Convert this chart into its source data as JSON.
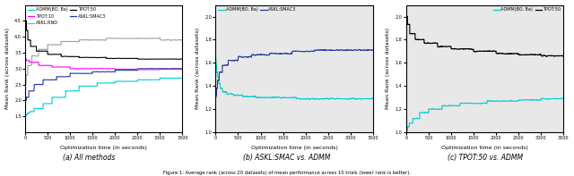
{
  "fig_width": 6.4,
  "fig_height": 1.97,
  "dpi": 100,
  "subplot_captions": [
    "(a) All methods",
    "(b) ASKL:SMAC vs. ADMM",
    "(c) TPOT:50 vs. ADMM"
  ],
  "caption_text": "Figure 1: Average rank (across 20 datasets) of mean performance across 10 trials (lower rank is better).",
  "colors": {
    "ADMM": "#00CED1",
    "ASKL_RND": "#A0A0A0",
    "ASKL_SMAC3": "#1E3A9F",
    "TPOT10": "#FF00FF",
    "TPOT50": "#000000"
  },
  "xlabel": "Optimization time (in seconds)",
  "ylabel": "Mean Rank (across datasets)",
  "xmax": 3500,
  "plot1": {
    "ylim": [
      1.0,
      5.0
    ],
    "yticks": [
      1.5,
      2.0,
      2.5,
      3.0,
      3.5,
      4.0,
      4.5
    ],
    "bg": "white"
  },
  "plot2": {
    "ylim": [
      1.0,
      2.1
    ],
    "yticks": [
      1.0,
      1.2,
      1.4,
      1.6,
      1.8,
      2.0
    ],
    "bg": "#E8E8E8"
  },
  "plot3": {
    "ylim": [
      1.0,
      2.1
    ],
    "yticks": [
      1.0,
      1.2,
      1.4,
      1.6,
      1.8,
      2.0
    ],
    "bg": "#E8E8E8"
  }
}
